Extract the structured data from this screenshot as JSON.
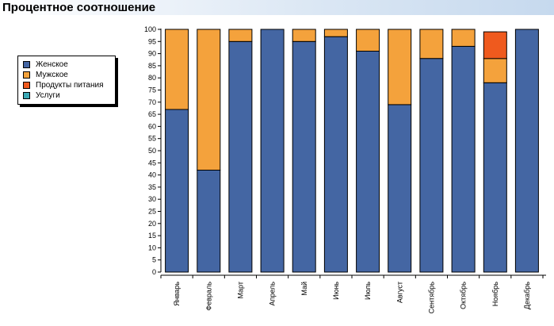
{
  "header": {
    "title": "Процентное соотношение"
  },
  "colors": {
    "series": [
      "#4466a3",
      "#f4a23c",
      "#ef5a1e",
      "#3aa8b5"
    ],
    "axis": "#000000",
    "bar_outline": "#000000"
  },
  "chart_data": {
    "type": "bar",
    "stacked": true,
    "categories": [
      "Январь",
      "Февраль",
      "Март",
      "Апрель",
      "Май",
      "Июнь",
      "Июль",
      "Август",
      "Сентябрь",
      "Октябрь",
      "Ноябрь",
      "Декабрь"
    ],
    "series": [
      {
        "name": "Женское",
        "values": [
          67,
          42,
          95,
          100,
          95,
          97,
          91,
          69,
          88,
          93,
          78,
          100
        ]
      },
      {
        "name": "Мужское",
        "values": [
          33,
          58,
          5,
          0,
          5,
          3,
          9,
          31,
          12,
          7,
          10,
          0
        ]
      },
      {
        "name": "Продукты питания",
        "values": [
          0,
          0,
          0,
          0,
          0,
          0,
          0,
          0,
          0,
          0,
          11,
          0
        ]
      },
      {
        "name": "Услуги",
        "values": [
          0,
          0,
          0,
          0,
          0,
          0,
          0,
          0,
          0,
          0,
          0,
          0
        ]
      }
    ],
    "ylim": [
      0,
      100
    ],
    "y_ticks": [
      "0",
      "5",
      "10",
      "15",
      "20",
      "25",
      "30",
      "35",
      "40",
      "45",
      "50",
      "55",
      "60",
      "65",
      "70",
      "75",
      "80",
      "85",
      "90",
      "95",
      "100"
    ],
    "legend_position": "left",
    "grid": false
  }
}
